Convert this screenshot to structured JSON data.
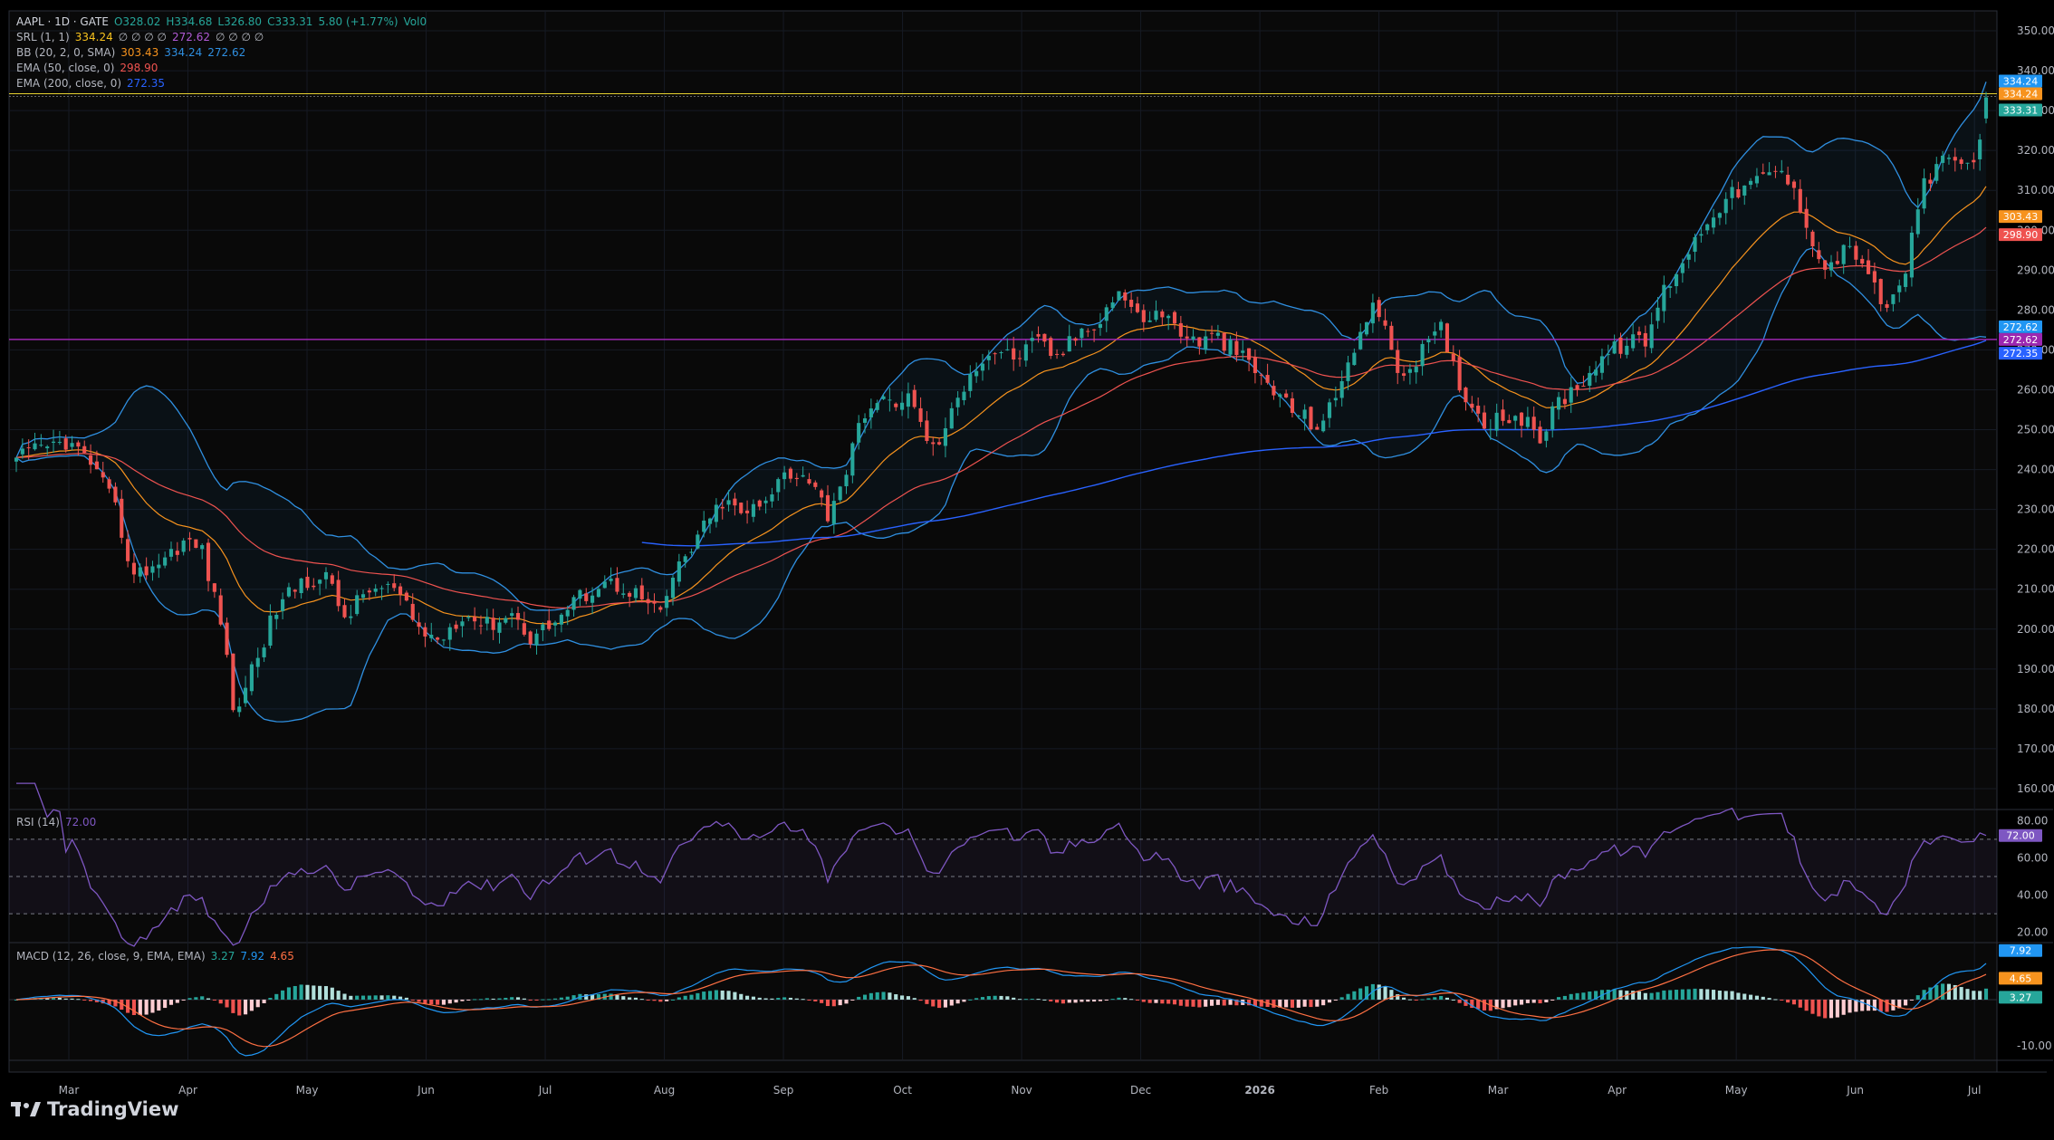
{
  "colors": {
    "up": "#26a69a",
    "down": "#ef5350",
    "bb": "#2f8fe0",
    "ema50": "#f7931e",
    "ema200": "#2962ff",
    "ema50r": "#ef5350",
    "rsi": "#7e57c2",
    "macd": "#2196f3",
    "signal": "#ff7043",
    "srl": "#e4cf2e",
    "support": "#9c27b0",
    "grid": "#161a24",
    "axisText": "#b2b5be"
  },
  "legend": {
    "symbol": "AAPL · 1D · GATE",
    "open": "O328.02",
    "high": "H334.68",
    "low": "L326.80",
    "close": "C333.31",
    "change": "5.80 (+1.77%)",
    "vol": "Vol0",
    "srl_label": "SRL (1, 1)",
    "srl_v1": "334.24",
    "srl_extra": "∅ ∅ ∅ ∅",
    "srl_v2": "272.62",
    "srl_extra2": "∅ ∅ ∅ ∅",
    "bb_label": "BB (20, 2, 0, SMA)",
    "bb_v1": "303.43",
    "bb_v2": "334.24",
    "bb_v3": "272.62",
    "ema50_label": "EMA (50, close, 0)",
    "ema50_v": "298.90",
    "ema200_label": "EMA (200, close, 0)",
    "ema200_v": "272.35",
    "rsi_label": "RSI (14)",
    "rsi_v": "72.00",
    "macd_label": "MACD (12, 26, close, 9, EMA, EMA)",
    "macd_v1": "3.27",
    "macd_v2": "7.92",
    "macd_v3": "4.65"
  },
  "chart_data": {
    "type": "candlestick",
    "price_axis": {
      "ticks": [
        "350.00",
        "340.00",
        "330.00",
        "320.00",
        "310.00",
        "300.00",
        "290.00",
        "280.00",
        "270.00",
        "260.00",
        "250.00",
        "240.00",
        "230.00",
        "220.00",
        "210.00",
        "200.00",
        "190.00",
        "180.00",
        "170.00",
        "160.00"
      ],
      "range": [
        155,
        355
      ]
    },
    "rsi_axis": {
      "ticks": [
        "80.00",
        "60.00",
        "40.00",
        "20.00"
      ],
      "range": [
        15,
        85
      ],
      "bands": [
        70,
        50,
        30
      ]
    },
    "macd_axis": {
      "ticks": [
        "0.00",
        "-10.00"
      ],
      "range": [
        -13,
        12
      ]
    },
    "x_labels": [
      "Mar",
      "Apr",
      "May",
      "Jun",
      "Jul",
      "Aug",
      "Sep",
      "Oct",
      "Nov",
      "Dec",
      "2026",
      "Feb",
      "Mar",
      "Apr",
      "May",
      "Jun",
      "Jul"
    ],
    "price_tags": [
      {
        "text": "334.24",
        "color": "#2196f3",
        "value": 334.24,
        "dy": -14
      },
      {
        "text": "334.24",
        "color": "#f7931e",
        "value": 334.24,
        "dy": 0
      },
      {
        "text": "333.31",
        "color": "#26a69a",
        "value": 333.31,
        "dy": 14
      },
      {
        "text": "303.43",
        "color": "#f7931e",
        "value": 303.43,
        "dy": 0
      },
      {
        "text": "298.90",
        "color": "#ef5350",
        "value": 298.9,
        "dy": 0
      },
      {
        "text": "272.62",
        "color": "#2196f3",
        "value": 272.62,
        "dy": -14
      },
      {
        "text": "272.62",
        "color": "#9c27b0",
        "value": 272.62,
        "dy": 0
      },
      {
        "text": "272.35",
        "color": "#2962ff",
        "value": 272.35,
        "dy": 14
      }
    ],
    "rsi_tag": {
      "text": "72.00",
      "value": 72
    },
    "macd_tags": [
      {
        "text": "7.92",
        "color": "#2196f3",
        "value": 7.92,
        "dy": -14
      },
      {
        "text": "4.65",
        "color": "#f7931e",
        "value": 4.65,
        "dy": 0
      },
      {
        "text": "3.27",
        "color": "#26a69a",
        "value": 3.27,
        "dy": 14
      }
    ],
    "srl_resistance": 334.24,
    "srl_support": 272.62,
    "close_anchors": [
      [
        0,
        243
      ],
      [
        8,
        247
      ],
      [
        12,
        242
      ],
      [
        16,
        230
      ],
      [
        19,
        213
      ],
      [
        24,
        218
      ],
      [
        27,
        222
      ],
      [
        30,
        220
      ],
      [
        34,
        195
      ],
      [
        35,
        178
      ],
      [
        38,
        190
      ],
      [
        42,
        205
      ],
      [
        46,
        212
      ],
      [
        50,
        213
      ],
      [
        53,
        203
      ],
      [
        57,
        210
      ],
      [
        61,
        210
      ],
      [
        65,
        200
      ],
      [
        68,
        197
      ],
      [
        72,
        204
      ],
      [
        76,
        201
      ],
      [
        80,
        204
      ],
      [
        83,
        198
      ],
      [
        87,
        202
      ],
      [
        91,
        208
      ],
      [
        95,
        212
      ],
      [
        99,
        210
      ],
      [
        103,
        205
      ],
      [
        104,
        203
      ],
      [
        106,
        213
      ],
      [
        110,
        223
      ],
      [
        114,
        232
      ],
      [
        117,
        229
      ],
      [
        121,
        231
      ],
      [
        124,
        240
      ],
      [
        128,
        238
      ],
      [
        131,
        229
      ],
      [
        134,
        240
      ],
      [
        137,
        255
      ],
      [
        141,
        257
      ],
      [
        144,
        258
      ],
      [
        148,
        245
      ],
      [
        150,
        250
      ],
      [
        154,
        265
      ],
      [
        158,
        270
      ],
      [
        161,
        268
      ],
      [
        165,
        272
      ],
      [
        168,
        268
      ],
      [
        172,
        275
      ],
      [
        175,
        278
      ],
      [
        178,
        285
      ],
      [
        181,
        278
      ],
      [
        185,
        279
      ],
      [
        190,
        272
      ],
      [
        194,
        273
      ],
      [
        198,
        268
      ],
      [
        201,
        263
      ],
      [
        206,
        255
      ],
      [
        210,
        251
      ],
      [
        213,
        257
      ],
      [
        215,
        268
      ],
      [
        219,
        280
      ],
      [
        221,
        278
      ],
      [
        223,
        262
      ],
      [
        226,
        268
      ],
      [
        230,
        275
      ],
      [
        232,
        266
      ],
      [
        234,
        258
      ],
      [
        237,
        252
      ],
      [
        242,
        254
      ],
      [
        246,
        248
      ],
      [
        249,
        257
      ],
      [
        252,
        261
      ],
      [
        256,
        268
      ],
      [
        260,
        272
      ],
      [
        263,
        272
      ],
      [
        266,
        285
      ],
      [
        270,
        295
      ],
      [
        274,
        305
      ],
      [
        278,
        310
      ],
      [
        282,
        313
      ],
      [
        285,
        315
      ],
      [
        288,
        306
      ],
      [
        290,
        298
      ],
      [
        292,
        290
      ],
      [
        295,
        295
      ],
      [
        297,
        294
      ],
      [
        299,
        290
      ],
      [
        301,
        280
      ],
      [
        303,
        283
      ],
      [
        305,
        290
      ],
      [
        308,
        312
      ],
      [
        312,
        318
      ],
      [
        315,
        316
      ],
      [
        317,
        322
      ],
      [
        318,
        333.31
      ]
    ],
    "n": 319
  }
}
